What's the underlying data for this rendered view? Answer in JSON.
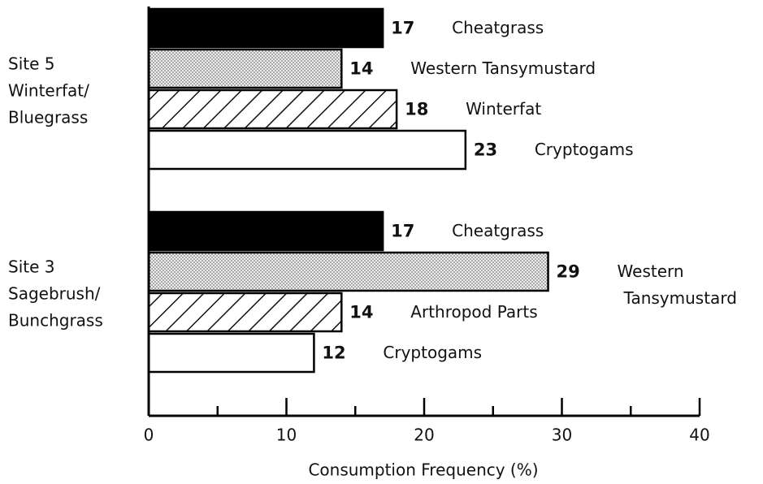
{
  "chart_data": {
    "type": "bar",
    "orientation": "horizontal",
    "groups": [
      {
        "label": [
          "Site 5",
          "Winterfat/",
          "Bluegrass"
        ],
        "bars": [
          {
            "name": [
              "Cheatgrass"
            ],
            "value": 17,
            "fill": "solid"
          },
          {
            "name": [
              "Western Tansymustard"
            ],
            "value": 14,
            "fill": "dots"
          },
          {
            "name": [
              "Winterfat"
            ],
            "value": 18,
            "fill": "hatch"
          },
          {
            "name": [
              "Cryptogams"
            ],
            "value": 23,
            "fill": "none"
          }
        ]
      },
      {
        "label": [
          "Site 3",
          "Sagebrush/",
          "Bunchgrass"
        ],
        "bars": [
          {
            "name": [
              "Cheatgrass"
            ],
            "value": 17,
            "fill": "solid"
          },
          {
            "name": [
              "Western",
              "Tansymustard"
            ],
            "value": 29,
            "fill": "dots"
          },
          {
            "name": [
              "Arthropod Parts"
            ],
            "value": 14,
            "fill": "hatch"
          },
          {
            "name": [
              "Cryptogams"
            ],
            "value": 12,
            "fill": "none"
          }
        ]
      }
    ],
    "xlabel": "Consumption Frequency (%)",
    "xlim": [
      0,
      40
    ],
    "xticks": [
      0,
      10,
      20,
      30,
      40
    ],
    "xminorticks": [
      5,
      15,
      25,
      35
    ]
  }
}
